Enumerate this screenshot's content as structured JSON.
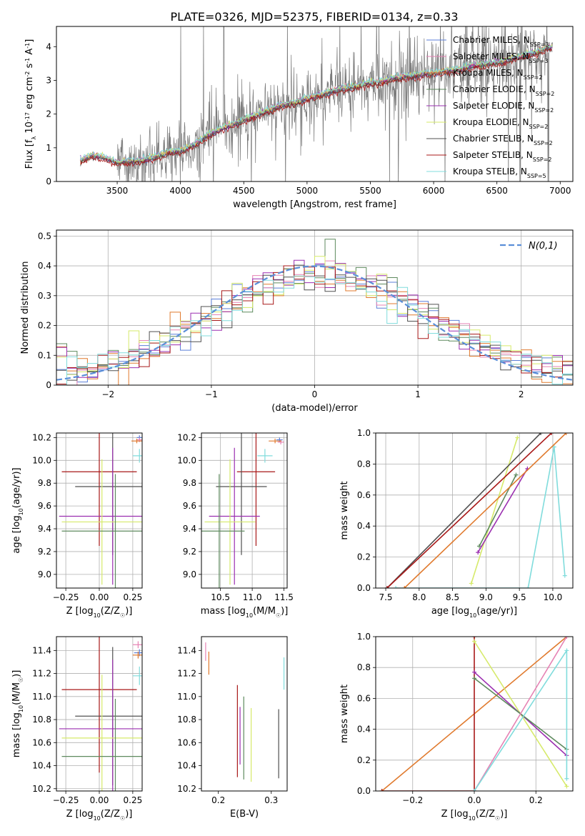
{
  "figure": {
    "title": "PLATE=0326, MJD=52375, FIBERID=0134, z=0.33"
  },
  "colors": {
    "Chabrier MILES": "#5b7fd8",
    "Salpeter MILES": "#e682b4",
    "Kroupa MILES": "#e07a2e",
    "Chabrier ELODIE": "#5e8a5e",
    "Salpeter ELODIE": "#9b2fb0",
    "Kroupa ELODIE": "#d6ea6a",
    "Chabrier STELIB": "#505050",
    "Salpeter STELIB": "#a81818",
    "Kroupa STELIB": "#80dcdc",
    "data": "#7a7a7a",
    "gauss": "#5b8fd8"
  },
  "chart_data": [
    {
      "id": "spectrum",
      "type": "line",
      "title": "PLATE=0326, MJD=52375, FIBERID=0134, z=0.33",
      "xlabel": "wavelength [Angstrom, rest frame]",
      "ylabel": "Flux [f_λ 10^-17 erg cm^-2 s^-1 A^-1]",
      "xlim": [
        3020,
        7100
      ],
      "ylim": [
        0,
        4.6
      ],
      "xticks": [
        3500,
        4000,
        4500,
        5000,
        5500,
        6000,
        6500,
        7000
      ],
      "yticks": [
        0,
        1,
        2,
        3,
        4
      ],
      "grid": false,
      "legend_position": "top-right",
      "continuum": {
        "x": [
          3210,
          3300,
          3400,
          3500,
          3600,
          3700,
          3800,
          3900,
          4000,
          4100,
          4200,
          4300,
          4400,
          4500,
          4600,
          4700,
          4800,
          4900,
          5000,
          5100,
          5200,
          5300,
          5400,
          5500,
          5600,
          5700,
          5800,
          5900,
          6000,
          6100,
          6200,
          6300,
          6400,
          6500,
          6600,
          6700,
          6800,
          6900
        ],
        "y": [
          0.6,
          0.75,
          0.68,
          0.55,
          0.58,
          0.6,
          0.7,
          0.85,
          0.88,
          1.05,
          1.3,
          1.5,
          1.65,
          1.8,
          1.95,
          2.1,
          2.25,
          2.3,
          2.45,
          2.55,
          2.65,
          2.75,
          2.8,
          2.9,
          2.95,
          3.05,
          3.1,
          3.15,
          3.2,
          3.25,
          3.3,
          3.4,
          3.45,
          3.5,
          3.6,
          3.7,
          3.8,
          3.95
        ]
      },
      "series_names": [
        "Chabrier MILES",
        "Salpeter MILES",
        "Kroupa MILES",
        "Chabrier ELODIE",
        "Salpeter ELODIE",
        "Kroupa ELODIE",
        "Chabrier STELIB",
        "Salpeter STELIB",
        "Kroupa STELIB"
      ],
      "legend_labels": [
        "Chabrier MILES, N_SSP=3",
        "Salpeter MILES, N_SSP=3",
        "Kroupa MILES, N_SSP=2",
        "Chabrier ELODIE, N_SSP=2",
        "Salpeter ELODIE, N_SSP=2",
        "Kroupa ELODIE, N_SSP=2",
        "Chabrier STELIB, N_SSP=2",
        "Salpeter STELIB, N_SSP=2",
        "Kroupa STELIB, N_SSP=5"
      ]
    },
    {
      "id": "residuals",
      "type": "line",
      "xlabel": "(data-model)/error",
      "ylabel": "Normed distribution",
      "xlim": [
        -2.5,
        2.5
      ],
      "ylim": [
        0,
        0.52
      ],
      "xticks": [
        -2,
        -1,
        0,
        1,
        2
      ],
      "yticks": [
        0.0,
        0.1,
        0.2,
        0.3,
        0.4,
        0.5
      ],
      "grid": true,
      "legend_position": "top-right",
      "legend": "N(0,1)",
      "gaussian": {
        "mean": 0,
        "sigma": 1
      },
      "bin_width": 0.1
    },
    {
      "id": "age_vs_Z",
      "type": "scatter",
      "xlabel": "Z [log10(Z/Z☉)]",
      "ylabel": "age [log10(age/yr)]",
      "xlim": [
        -0.32,
        0.32
      ],
      "ylim": [
        8.88,
        10.24
      ],
      "xticks": [
        "-0.25",
        "0.00",
        "0.25"
      ],
      "yticks": [
        "9.0",
        "9.2",
        "9.4",
        "9.6",
        "9.8",
        "10.0",
        "10.2"
      ],
      "grid": true,
      "points": [
        {
          "series": "Chabrier MILES",
          "x": 0.3,
          "y": 10.2,
          "xerr": 0.02,
          "yerr": 0.02
        },
        {
          "series": "Salpeter MILES",
          "x": 0.3,
          "y": 10.18,
          "xerr": 0.02,
          "yerr": 0.02
        },
        {
          "series": "Kroupa MILES",
          "x": 0.28,
          "y": 10.17,
          "xerr": 0.04,
          "yerr": 0.02
        },
        {
          "series": "Kroupa STELIB",
          "x": 0.3,
          "y": 10.04,
          "xerr": 0.05,
          "yerr": 0.06
        },
        {
          "series": "Salpeter STELIB",
          "x": 0.0,
          "y": 9.9,
          "xerr": 0.28,
          "yerr": 0.65
        },
        {
          "series": "Chabrier STELIB",
          "x": 0.1,
          "y": 9.77,
          "xerr": 0.28,
          "yerr": 0.6
        },
        {
          "series": "Salpeter ELODIE",
          "x": 0.1,
          "y": 9.51,
          "xerr": 0.4,
          "yerr": 0.6
        },
        {
          "series": "Kroupa ELODIE",
          "x": 0.02,
          "y": 9.46,
          "xerr": 0.3,
          "yerr": 0.55
        },
        {
          "series": "Chabrier ELODIE",
          "x": 0.12,
          "y": 9.38,
          "xerr": 0.4,
          "yerr": 0.5
        }
      ]
    },
    {
      "id": "age_vs_mass",
      "type": "scatter",
      "xlabel": "mass [log10(M/M☉)]",
      "ylabel": "",
      "xlim": [
        10.2,
        11.55
      ],
      "ylim": [
        8.88,
        10.24
      ],
      "xticks": [
        "10.5",
        "11.0",
        "11.5"
      ],
      "yticks": [
        "9.0",
        "9.2",
        "9.4",
        "9.6",
        "9.8",
        "10.0",
        "10.2"
      ],
      "grid": true,
      "points": [
        {
          "series": "Chabrier MILES",
          "x": 11.43,
          "y": 10.18,
          "xerr": 0.05,
          "yerr": 0.02
        },
        {
          "series": "Salpeter MILES",
          "x": 11.45,
          "y": 10.16,
          "xerr": 0.05,
          "yerr": 0.02
        },
        {
          "series": "Kroupa MILES",
          "x": 11.36,
          "y": 10.17,
          "xerr": 0.1,
          "yerr": 0.02
        },
        {
          "series": "Kroupa STELIB",
          "x": 11.2,
          "y": 10.04,
          "xerr": 0.12,
          "yerr": 0.06
        },
        {
          "series": "Salpeter STELIB",
          "x": 11.06,
          "y": 9.9,
          "xerr": 0.3,
          "yerr": 0.65
        },
        {
          "series": "Chabrier STELIB",
          "x": 10.83,
          "y": 9.77,
          "xerr": 0.4,
          "yerr": 0.6
        },
        {
          "series": "Salpeter ELODIE",
          "x": 10.72,
          "y": 9.51,
          "xerr": 0.4,
          "yerr": 0.6
        },
        {
          "series": "Kroupa ELODIE",
          "x": 10.65,
          "y": 9.46,
          "xerr": 0.4,
          "yerr": 0.55
        },
        {
          "series": "Chabrier ELODIE",
          "x": 10.48,
          "y": 9.38,
          "xerr": 0.4,
          "yerr": 0.5
        }
      ]
    },
    {
      "id": "mass_weight_vs_age",
      "type": "line",
      "xlabel": "age [log10(age/yr)]",
      "ylabel": "mass weight",
      "xlim": [
        7.35,
        10.3
      ],
      "ylim": [
        0,
        1
      ],
      "xticks": [
        "7.5",
        "8.0",
        "8.5",
        "9.0",
        "9.5",
        "10.0"
      ],
      "yticks": [
        "0.0",
        "0.2",
        "0.4",
        "0.6",
        "0.8",
        "1.0"
      ],
      "grid": true,
      "lines": [
        {
          "series": "Kroupa STELIB",
          "x": [
            7.65,
            9.63,
            10.02,
            10.18
          ],
          "y": [
            0.0,
            0.0,
            0.91,
            0.08
          ]
        },
        {
          "series": "Kroupa ELODIE",
          "x": [
            8.78,
            9.47
          ],
          "y": [
            0.03,
            0.97
          ]
        },
        {
          "series": "Chabrier ELODIE",
          "x": [
            8.9,
            9.45
          ],
          "y": [
            0.27,
            0.73
          ]
        },
        {
          "series": "Salpeter ELODIE",
          "x": [
            8.88,
            9.62
          ],
          "y": [
            0.23,
            0.77
          ]
        },
        {
          "series": "Chabrier STELIB",
          "x": [
            7.52,
            9.82
          ],
          "y": [
            0.0,
            1.0
          ]
        },
        {
          "series": "Salpeter STELIB",
          "x": [
            7.52,
            9.98
          ],
          "y": [
            0.0,
            1.0
          ]
        },
        {
          "series": "Kroupa MILES",
          "x": [
            7.78,
            10.2
          ],
          "y": [
            0.0,
            1.0
          ]
        }
      ]
    },
    {
      "id": "mass_vs_Z",
      "type": "scatter",
      "xlabel": "Z [log10(Z/Z☉)]",
      "ylabel": "mass [log10(M/M☉)]",
      "xlim": [
        -0.32,
        0.32
      ],
      "ylim": [
        10.18,
        11.52
      ],
      "xticks": [
        "-0.25",
        "0.00",
        "0.25"
      ],
      "yticks": [
        "10.2",
        "10.4",
        "10.6",
        "10.8",
        "11.0",
        "11.2",
        "11.4"
      ],
      "grid": true,
      "points": [
        {
          "series": "Salpeter MILES",
          "x": 0.29,
          "y": 11.45,
          "xerr": 0.04,
          "yerr": 0.03
        },
        {
          "series": "Chabrier MILES",
          "x": 0.3,
          "y": 11.38,
          "xerr": 0.04,
          "yerr": 0.03
        },
        {
          "series": "Kroupa MILES",
          "x": 0.29,
          "y": 11.36,
          "xerr": 0.04,
          "yerr": 0.03
        },
        {
          "series": "Kroupa STELIB",
          "x": 0.3,
          "y": 11.18,
          "xerr": 0.05,
          "yerr": 0.08
        },
        {
          "series": "Salpeter STELIB",
          "x": 0.0,
          "y": 11.06,
          "xerr": 0.28,
          "yerr": 0.72
        },
        {
          "series": "Chabrier STELIB",
          "x": 0.1,
          "y": 10.83,
          "xerr": 0.28,
          "yerr": 0.6
        },
        {
          "series": "Salpeter ELODIE",
          "x": 0.1,
          "y": 10.72,
          "xerr": 0.4,
          "yerr": 0.6
        },
        {
          "series": "Kroupa ELODIE",
          "x": 0.02,
          "y": 10.64,
          "xerr": 0.3,
          "yerr": 0.55
        },
        {
          "series": "Chabrier ELODIE",
          "x": 0.12,
          "y": 10.48,
          "xerr": 0.4,
          "yerr": 0.5
        }
      ]
    },
    {
      "id": "mass_vs_ebv",
      "type": "scatter",
      "xlabel": "E(B-V)",
      "ylabel": "",
      "xlim": [
        0.168,
        0.33
      ],
      "ylim": [
        10.18,
        11.52
      ],
      "xticks": [
        "0.2",
        "0.3"
      ],
      "yticks": [
        "10.2",
        "10.4",
        "10.6",
        "10.8",
        "11.0",
        "11.2",
        "11.4"
      ],
      "grid": false,
      "points": [
        {
          "series": "Salpeter MILES",
          "x": 0.176,
          "y": 11.39,
          "xerr": 0.0,
          "yerr": 0.08
        },
        {
          "series": "Kroupa MILES",
          "x": 0.182,
          "y": 11.29,
          "xerr": 0.0,
          "yerr": 0.1
        },
        {
          "series": "Kroupa STELIB",
          "x": 0.324,
          "y": 11.2,
          "xerr": 0.0,
          "yerr": 0.14
        },
        {
          "series": "Salpeter STELIB",
          "x": 0.236,
          "y": 10.7,
          "xerr": 0.0,
          "yerr": 0.4
        },
        {
          "series": "Salpeter ELODIE",
          "x": 0.241,
          "y": 10.66,
          "xerr": 0.0,
          "yerr": 0.25
        },
        {
          "series": "Chabrier ELODIE",
          "x": 0.248,
          "y": 10.64,
          "xerr": 0.0,
          "yerr": 0.36
        },
        {
          "series": "Kroupa ELODIE",
          "x": 0.262,
          "y": 10.58,
          "xerr": 0.0,
          "yerr": 0.32
        },
        {
          "series": "Chabrier STELIB",
          "x": 0.314,
          "y": 10.59,
          "xerr": 0.0,
          "yerr": 0.3
        }
      ]
    },
    {
      "id": "mass_weight_vs_Z",
      "type": "line",
      "xlabel": "Z [log10(Z/Z☉)]",
      "ylabel": "mass weight",
      "xlim": [
        -0.32,
        0.32
      ],
      "ylim": [
        0,
        1
      ],
      "xticks": [
        "-0.2",
        "0.0",
        "0.2"
      ],
      "yticks": [
        "0.0",
        "0.2",
        "0.4",
        "0.6",
        "0.8",
        "1.0"
      ],
      "grid": true,
      "lines": [
        {
          "series": "Kroupa MILES",
          "x": [
            -0.3,
            0.3
          ],
          "y": [
            0.0,
            1.0
          ]
        },
        {
          "series": "Salpeter STELIB",
          "x": [
            -0.3,
            0.0,
            0.0
          ],
          "y": [
            0.0,
            0.0,
            1.0
          ]
        },
        {
          "series": "Kroupa ELODIE",
          "x": [
            0.0,
            0.3
          ],
          "y": [
            0.97,
            0.03
          ]
        },
        {
          "series": "Salpeter ELODIE",
          "x": [
            0.0,
            0.3
          ],
          "y": [
            0.77,
            0.23
          ]
        },
        {
          "series": "Chabrier ELODIE",
          "x": [
            0.0,
            0.3
          ],
          "y": [
            0.73,
            0.27
          ]
        },
        {
          "series": "Salpeter MILES",
          "x": [
            0.0,
            0.3
          ],
          "y": [
            0.0,
            1.0
          ]
        },
        {
          "series": "Kroupa STELIB",
          "x": [
            0.0,
            0.3,
            0.3
          ],
          "y": [
            0.0,
            0.91,
            0.08
          ]
        }
      ]
    }
  ]
}
